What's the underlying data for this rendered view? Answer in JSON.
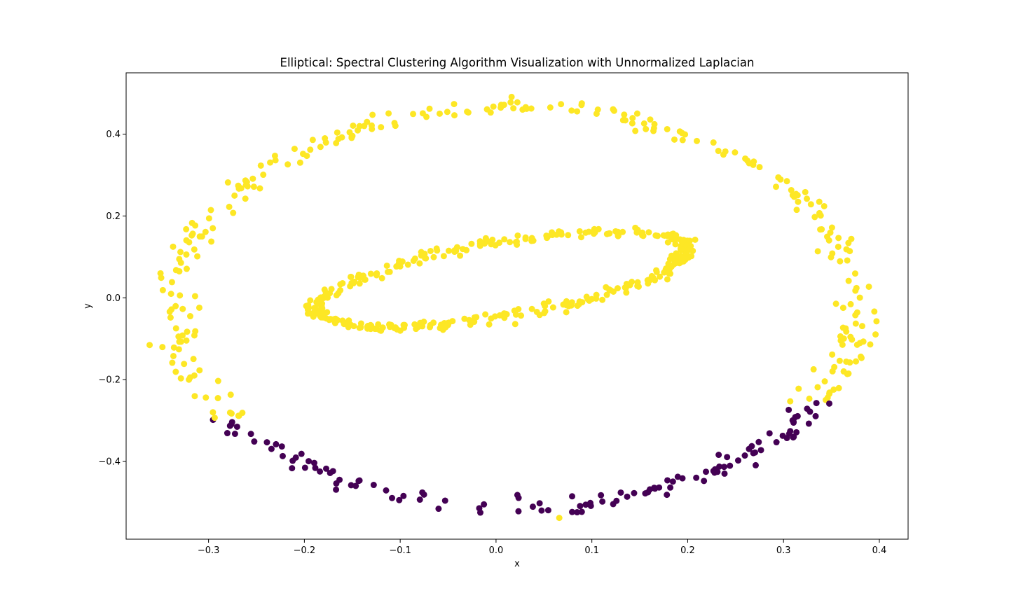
{
  "chart_data": {
    "type": "scatter",
    "title": "Elliptical: Spectral Clustering Algorithm Visualization with Unnormalized Laplacian",
    "xlabel": "x",
    "ylabel": "y",
    "xlim": [
      -0.386,
      0.43
    ],
    "ylim": [
      -0.59,
      0.55
    ],
    "x_ticks": [
      -0.3,
      -0.2,
      -0.1,
      0.0,
      0.1,
      0.2,
      0.3,
      0.4
    ],
    "x_tick_labels": [
      "−0.3",
      "−0.2",
      "−0.1",
      "0.0",
      "0.1",
      "0.2",
      "0.3",
      "0.4"
    ],
    "y_ticks": [
      -0.4,
      -0.2,
      0.0,
      0.2,
      0.4
    ],
    "y_tick_labels": [
      "−0.4",
      "−0.2",
      "0.0",
      "0.2",
      "0.4"
    ],
    "grid": false,
    "legend": "none",
    "colors": {
      "cluster_0": "#440154",
      "cluster_1": "#fde725",
      "axes": "#000000",
      "background": "#ffffff"
    },
    "inner_ellipse": {
      "center": [
        0.005,
        0.045
      ],
      "angle_deg": 25,
      "semi_major": 0.21,
      "semi_minor": 0.085,
      "n_points": 380,
      "noise": 0.007,
      "cluster": 1
    },
    "outer_ring": {
      "center": [
        0.02,
        -0.025
      ],
      "radius_x": 0.355,
      "radius_y": 0.49,
      "n_points": 400,
      "noise": 0.012,
      "cluster_rule": "points with y below -0.295 (x < 0.1) or below -0.25 (x >= 0.1) are cluster 0, others cluster 1"
    }
  }
}
